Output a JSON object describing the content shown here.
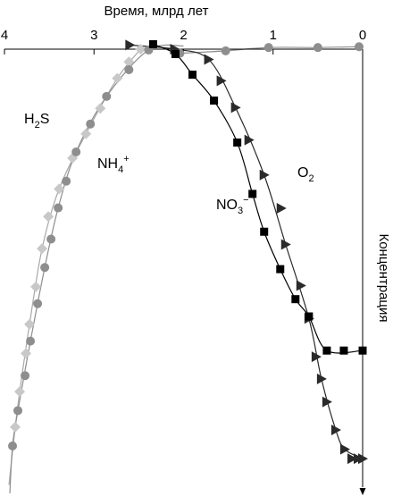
{
  "chart_data": {
    "type": "scatter",
    "x_axis": {
      "label": "Время, млрд лет",
      "ticks": [
        "4",
        "3",
        "2",
        "1",
        "0"
      ],
      "tick_values": [
        4,
        3,
        2,
        1,
        0
      ],
      "range": [
        4,
        0
      ],
      "position": "top"
    },
    "y_axis": {
      "label": "Концентрация",
      "position": "right",
      "range": [
        0,
        1
      ],
      "ticks": []
    },
    "grid": false,
    "series": [
      {
        "name": "H2S",
        "label_main": "H",
        "label_sub": "2",
        "label_tail": "S",
        "marker": "diamond",
        "color": "#c8c8c8",
        "line_color": "#a8a8a8",
        "points": [
          [
            2.48,
            1.0
          ],
          [
            2.61,
            0.969
          ],
          [
            2.74,
            0.929
          ],
          [
            2.93,
            0.856
          ],
          [
            3.09,
            0.794
          ],
          [
            3.24,
            0.735
          ],
          [
            3.39,
            0.66
          ],
          [
            3.51,
            0.593
          ],
          [
            3.58,
            0.515
          ],
          [
            3.65,
            0.422
          ],
          [
            3.72,
            0.331
          ],
          [
            3.76,
            0.26
          ],
          [
            3.83,
            0.167
          ],
          [
            3.88,
            0.081
          ]
        ],
        "curve": [
          [
            2.48,
            1.0
          ],
          [
            2.74,
            0.929
          ],
          [
            3.09,
            0.794
          ],
          [
            3.39,
            0.66
          ],
          [
            3.58,
            0.515
          ],
          [
            3.72,
            0.331
          ],
          [
            3.83,
            0.167
          ],
          [
            3.88,
            0.081
          ],
          [
            3.95,
            -0.06
          ]
        ]
      },
      {
        "name": "NH4+",
        "label_main": "NH",
        "label_sub": "4",
        "label_sup": "+",
        "marker": "circle",
        "color": "#8e8e8e",
        "line_color": "#8e8e8e",
        "points": [
          [
            2.39,
            0.998
          ],
          [
            2.61,
            0.95
          ],
          [
            2.86,
            0.885
          ],
          [
            3.04,
            0.818
          ],
          [
            3.2,
            0.75
          ],
          [
            3.31,
            0.679
          ],
          [
            3.4,
            0.614
          ],
          [
            3.48,
            0.538
          ],
          [
            3.55,
            0.469
          ],
          [
            3.63,
            0.381
          ],
          [
            3.71,
            0.29
          ],
          [
            3.77,
            0.206
          ],
          [
            3.85,
            0.121
          ],
          [
            3.91,
            0.035
          ]
        ],
        "curve": [
          [
            2.0,
            1.008
          ],
          [
            2.39,
            0.998
          ],
          [
            2.86,
            0.885
          ],
          [
            3.2,
            0.75
          ],
          [
            3.4,
            0.614
          ],
          [
            3.55,
            0.469
          ],
          [
            3.71,
            0.29
          ],
          [
            3.85,
            0.121
          ],
          [
            3.91,
            0.035
          ],
          [
            3.94,
            -0.08
          ]
        ]
      },
      {
        "name": "O2 (gray segment)",
        "marker": "circle",
        "color": "#8e8e8e",
        "line_color": "#8e8e8e",
        "points": [
          [
            2.04,
            0.99
          ],
          [
            1.53,
            0.996
          ],
          [
            1.05,
            1.004
          ],
          [
            0.5,
            1.004
          ],
          [
            0.04,
            1.006
          ]
        ],
        "curve": [
          [
            2.04,
            0.99
          ],
          [
            1.53,
            0.996
          ],
          [
            1.05,
            1.004
          ],
          [
            0.5,
            1.004
          ],
          [
            0.04,
            1.006
          ]
        ]
      },
      {
        "name": "O2",
        "label_main": "O",
        "label_sub": "2",
        "marker": "triangle",
        "color": "#2a2a2a",
        "line_color": "#2a2a2a",
        "points": [
          [
            2.6,
            1.01
          ],
          [
            2.1,
            1.0
          ],
          [
            1.72,
            0.975
          ],
          [
            1.58,
            0.923
          ],
          [
            1.42,
            0.858
          ],
          [
            1.27,
            0.779
          ],
          [
            1.1,
            0.694
          ],
          [
            0.91,
            0.613
          ],
          [
            0.86,
            0.525
          ],
          [
            0.69,
            0.425
          ],
          [
            0.6,
            0.345
          ],
          [
            0.52,
            0.252
          ],
          [
            0.46,
            0.198
          ],
          [
            0.4,
            0.142
          ],
          [
            0.3,
            0.074
          ],
          [
            0.2,
            0.027
          ],
          [
            0.12,
            0.004
          ],
          [
            0.05,
            0.004
          ],
          [
            0.0,
            0.004
          ]
        ],
        "curve": [
          [
            2.6,
            1.01
          ],
          [
            2.1,
            1.0
          ],
          [
            1.72,
            0.975
          ],
          [
            1.42,
            0.858
          ],
          [
            1.1,
            0.694
          ],
          [
            0.86,
            0.525
          ],
          [
            0.6,
            0.345
          ],
          [
            0.46,
            0.198
          ],
          [
            0.3,
            0.074
          ],
          [
            0.2,
            0.027
          ],
          [
            0.0,
            0.004
          ]
        ]
      },
      {
        "name": "NO3-",
        "label_main": "NO",
        "label_sub": "3",
        "label_sup": "−",
        "marker": "square",
        "color": "#000000",
        "line_color": "#000000",
        "points": [
          [
            2.34,
            1.012
          ],
          [
            2.09,
            0.988
          ],
          [
            1.9,
            0.938
          ],
          [
            1.66,
            0.875
          ],
          [
            1.4,
            0.773
          ],
          [
            1.23,
            0.648
          ],
          [
            1.1,
            0.556
          ],
          [
            0.92,
            0.465
          ],
          [
            0.75,
            0.392
          ],
          [
            0.6,
            0.35
          ],
          [
            0.4,
            0.267
          ],
          [
            0.21,
            0.267
          ],
          [
            0.0,
            0.267
          ]
        ],
        "curve": [
          [
            2.34,
            1.012
          ],
          [
            2.09,
            0.988
          ],
          [
            1.9,
            0.938
          ],
          [
            1.66,
            0.875
          ],
          [
            1.4,
            0.773
          ],
          [
            1.23,
            0.648
          ],
          [
            1.1,
            0.556
          ],
          [
            0.92,
            0.465
          ],
          [
            0.75,
            0.392
          ],
          [
            0.6,
            0.35
          ],
          [
            0.4,
            0.267
          ],
          [
            0.0,
            0.267
          ]
        ]
      }
    ]
  }
}
